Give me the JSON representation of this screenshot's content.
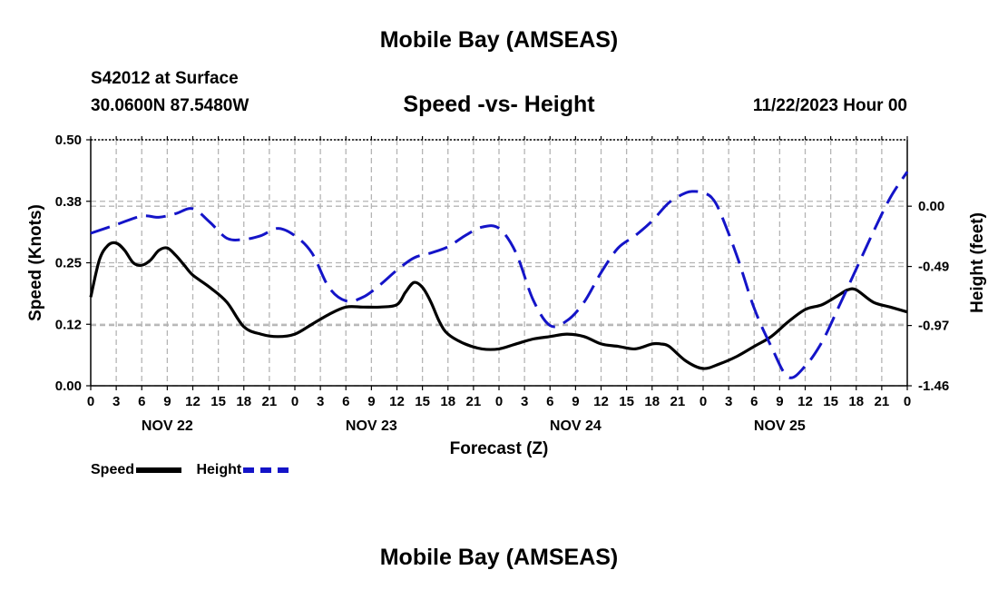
{
  "titles": {
    "main": "Mobile Bay (AMSEAS)",
    "station": "S42012 at Surface",
    "coords": "30.0600N  87.5480W",
    "subtitle": "Speed -vs- Height",
    "datetime": "11/22/2023 Hour 00",
    "bottom": "Mobile Bay (AMSEAS)"
  },
  "legend": {
    "speed": "Speed",
    "height": "Height"
  },
  "colors": {
    "speed": "#000000",
    "height": "#1414c8",
    "grid": "#b4b4b4"
  },
  "chart_data": {
    "type": "line",
    "title": "Speed -vs- Height",
    "xlabel": "Forecast (Z)",
    "ylabel": "Speed (Knots)",
    "y2label": "Height (feet)",
    "xlim": [
      0,
      96
    ],
    "ylim": [
      0,
      0.5
    ],
    "y2lim": [
      -1.46,
      0.54
    ],
    "y_ticks": [
      "0.00",
      "0.12",
      "0.25",
      "0.38",
      "0.50"
    ],
    "y_tick_values": [
      0,
      0.125,
      0.25,
      0.375,
      0.5
    ],
    "y2_ticks": [
      "-1.46",
      "-0.97",
      "-0.49",
      "0.00"
    ],
    "y2_tick_values": [
      -1.46,
      -0.97,
      -0.49,
      0.0
    ],
    "x_ticks": [
      "0",
      "3",
      "6",
      "9",
      "12",
      "15",
      "18",
      "21",
      "0",
      "3",
      "6",
      "9",
      "12",
      "15",
      "18",
      "21",
      "0",
      "3",
      "6",
      "9",
      "12",
      "15",
      "18",
      "21",
      "0",
      "3",
      "6",
      "9",
      "12",
      "15",
      "18",
      "21",
      "0"
    ],
    "x_tick_values": [
      0,
      3,
      6,
      9,
      12,
      15,
      18,
      21,
      24,
      27,
      30,
      33,
      36,
      39,
      42,
      45,
      48,
      51,
      54,
      57,
      60,
      63,
      66,
      69,
      72,
      75,
      78,
      81,
      84,
      87,
      90,
      93,
      96
    ],
    "day_labels": [
      "NOV 22",
      "NOV 23",
      "NOV 24",
      "NOV 25"
    ],
    "day_label_hours": [
      9,
      33,
      57,
      81
    ],
    "series": [
      {
        "name": "Speed",
        "axis": "left",
        "style": "solid",
        "x": [
          0,
          1,
          2,
          3,
          4,
          5,
          6,
          7,
          8,
          9,
          10,
          11,
          12,
          14,
          16,
          18,
          20,
          22,
          24,
          26,
          28,
          30,
          32,
          34,
          36,
          37,
          38,
          39,
          40,
          41,
          42,
          44,
          46,
          48,
          50,
          52,
          54,
          56,
          58,
          60,
          62,
          64,
          66,
          67,
          68,
          70,
          72,
          74,
          76,
          78,
          80,
          82,
          84,
          86,
          88,
          89,
          90,
          92,
          94,
          96
        ],
        "values": [
          0.18,
          0.255,
          0.285,
          0.29,
          0.275,
          0.25,
          0.245,
          0.255,
          0.275,
          0.28,
          0.265,
          0.245,
          0.225,
          0.2,
          0.17,
          0.12,
          0.105,
          0.1,
          0.105,
          0.125,
          0.145,
          0.16,
          0.16,
          0.16,
          0.165,
          0.19,
          0.21,
          0.2,
          0.17,
          0.13,
          0.105,
          0.085,
          0.075,
          0.075,
          0.085,
          0.095,
          0.1,
          0.105,
          0.1,
          0.085,
          0.08,
          0.075,
          0.085,
          0.085,
          0.08,
          0.05,
          0.035,
          0.045,
          0.06,
          0.08,
          0.1,
          0.13,
          0.155,
          0.165,
          0.185,
          0.195,
          0.195,
          0.17,
          0.16,
          0.15
        ]
      },
      {
        "name": "Height",
        "axis": "right",
        "style": "dashed",
        "x": [
          0,
          3,
          6,
          8,
          10,
          12,
          14,
          16,
          18,
          20,
          22,
          24,
          26,
          28,
          30,
          32,
          34,
          36,
          38,
          40,
          42,
          44,
          46,
          48,
          50,
          52,
          54,
          56,
          58,
          60,
          62,
          64,
          66,
          68,
          70,
          71,
          72,
          73,
          74,
          76,
          78,
          80,
          82,
          84,
          86,
          88,
          90,
          92,
          94,
          96
        ],
        "values": [
          -0.22,
          -0.15,
          -0.08,
          -0.09,
          -0.06,
          -0.02,
          -0.13,
          -0.26,
          -0.27,
          -0.24,
          -0.18,
          -0.24,
          -0.38,
          -0.66,
          -0.77,
          -0.74,
          -0.64,
          -0.52,
          -0.42,
          -0.38,
          -0.33,
          -0.24,
          -0.17,
          -0.18,
          -0.38,
          -0.76,
          -0.97,
          -0.93,
          -0.78,
          -0.54,
          -0.34,
          -0.24,
          -0.12,
          0.03,
          0.11,
          0.12,
          0.11,
          0.07,
          -0.05,
          -0.41,
          -0.83,
          -1.14,
          -1.39,
          -1.3,
          -1.1,
          -0.81,
          -0.51,
          -0.21,
          0.07,
          0.28
        ]
      }
    ]
  }
}
